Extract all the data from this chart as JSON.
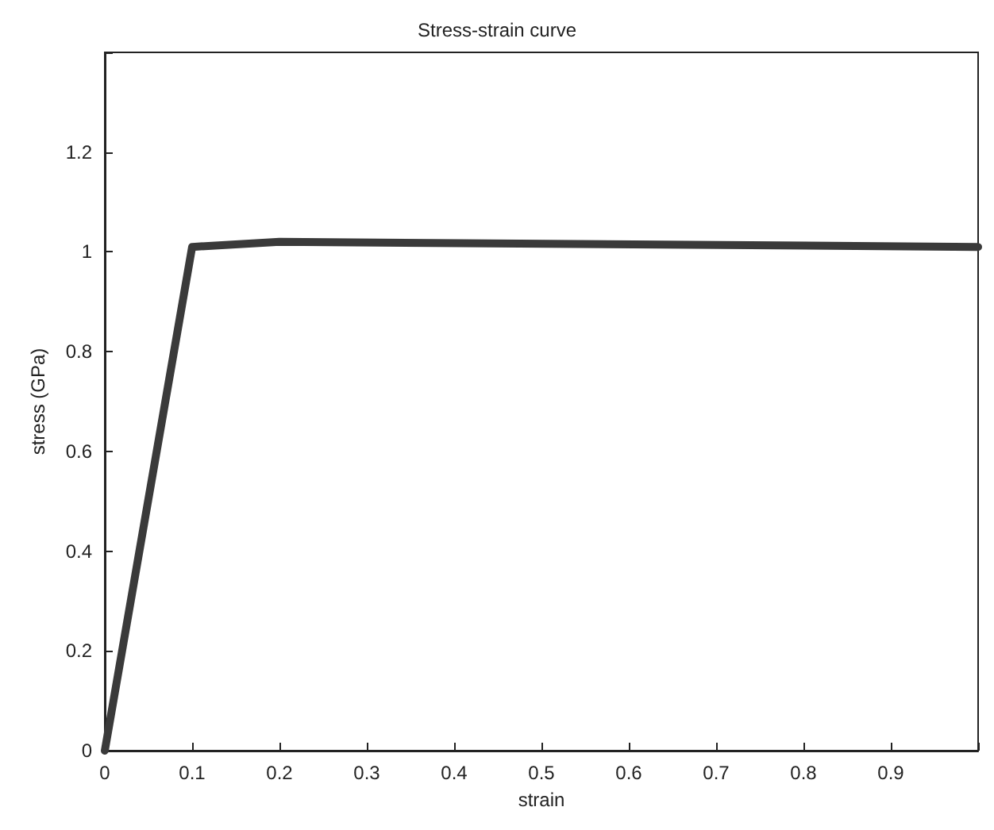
{
  "chart_data": {
    "type": "line",
    "title": "Stress-strain curve",
    "xlabel": "strain",
    "ylabel": "stress (GPa)",
    "x": [
      0,
      0.1,
      0.2,
      1
    ],
    "series": [
      {
        "color": "#3a3a3a",
        "values": [
          0,
          1.01,
          1.02,
          1.01
        ]
      }
    ],
    "xlim": [
      0,
      1
    ],
    "xticks": [
      0,
      0.1,
      0.2,
      0.3,
      0.4,
      0.5,
      0.6,
      0.7,
      0.8,
      0.9,
      {
        "value": 1,
        "label": null
      }
    ],
    "ylim": [
      0,
      1.4
    ],
    "yticks": [
      0,
      0.2,
      0.4,
      0.6,
      0.8,
      1,
      1.2,
      {
        "value": 1.4,
        "label": null
      }
    ],
    "grid": false,
    "marker": "none",
    "line_style": "solid"
  }
}
